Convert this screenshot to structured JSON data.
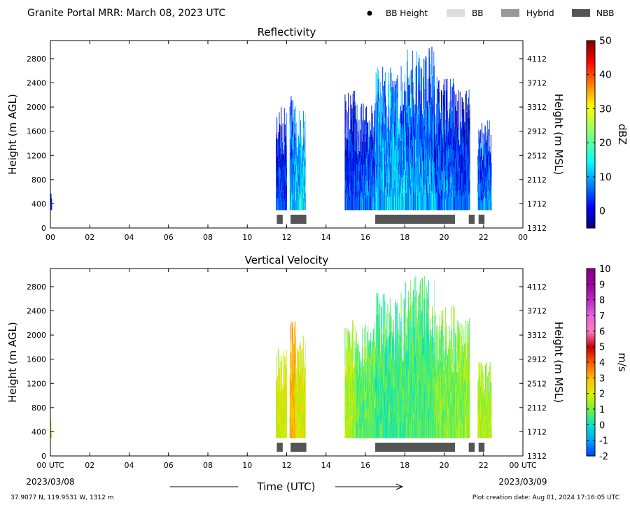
{
  "header": {
    "title": "Granite Portal MRR:  March 08, 2023 UTC",
    "legend": [
      {
        "label": "BB Height",
        "kind": "dot",
        "color": "#000000"
      },
      {
        "label": "BB",
        "kind": "swatch",
        "color": "#dddddd"
      },
      {
        "label": "Hybrid",
        "kind": "swatch",
        "color": "#999999"
      },
      {
        "label": "NBB",
        "kind": "swatch",
        "color": "#555555"
      }
    ]
  },
  "footer": {
    "location": "37.9077 N, 119.9531 W, 1312 m",
    "created": "Plot creation date: Aug 01, 2024 17:16:05 UTC",
    "date_start": "2023/03/08",
    "date_end": "2023/03/09",
    "xlabel": "Time (UTC)"
  },
  "chart_data": [
    {
      "type": "heatmap",
      "title": "Reflectivity",
      "ylabel": "Height (m AGL)",
      "y2label": "Height (m MSL)",
      "xlim": [
        0,
        24
      ],
      "ylim": [
        0,
        3100
      ],
      "x_ticks": [
        "00",
        "02",
        "04",
        "06",
        "08",
        "10",
        "12",
        "14",
        "16",
        "18",
        "20",
        "22",
        "00"
      ],
      "y_ticks": [
        0,
        400,
        800,
        1200,
        1600,
        2000,
        2400,
        2800
      ],
      "y2_ticks": [
        "1312",
        "1712",
        "2112",
        "2512",
        "2912",
        "3312",
        "3712",
        "4112"
      ],
      "colorbar": {
        "label": "dBZ",
        "min": -5,
        "max": 50,
        "ticks": [
          0,
          10,
          20,
          30,
          40,
          50
        ],
        "colormap": "jet"
      },
      "bright_band_type": [
        {
          "start": 11.5,
          "end": 11.8,
          "type": "NBB"
        },
        {
          "start": 12.2,
          "end": 13.0,
          "type": "NBB"
        },
        {
          "start": 16.5,
          "end": 20.55,
          "type": "NBB"
        },
        {
          "start": 21.25,
          "end": 21.55,
          "type": "NBB"
        },
        {
          "start": 21.75,
          "end": 22.05,
          "type": "NBB"
        }
      ],
      "echo_periods": [
        {
          "start": 0.0,
          "end": 0.07,
          "top": 600,
          "level": 2
        },
        {
          "start": 11.45,
          "end": 12.0,
          "top": 2000,
          "level": 5
        },
        {
          "start": 12.15,
          "end": 12.45,
          "top": 2300,
          "level": 10
        },
        {
          "start": 12.45,
          "end": 12.95,
          "top": 2000,
          "level": 14
        },
        {
          "start": 14.95,
          "end": 15.5,
          "top": 2300,
          "level": 4
        },
        {
          "start": 15.5,
          "end": 16.5,
          "top": 2100,
          "level": 7
        },
        {
          "start": 16.5,
          "end": 18.0,
          "top": 2700,
          "level": 12
        },
        {
          "start": 18.0,
          "end": 19.5,
          "top": 3000,
          "level": 10
        },
        {
          "start": 19.5,
          "end": 20.55,
          "top": 2500,
          "level": 7
        },
        {
          "start": 20.55,
          "end": 21.3,
          "top": 2300,
          "level": 5
        },
        {
          "start": 21.7,
          "end": 22.4,
          "top": 1800,
          "level": 8
        }
      ]
    },
    {
      "type": "heatmap",
      "title": "Vertical Velocity",
      "ylabel": "Height (m AGL)",
      "y2label": "Height (m MSL)",
      "xlim": [
        0,
        24
      ],
      "ylim": [
        0,
        3100
      ],
      "x_ticks": [
        "00 UTC",
        "02",
        "04",
        "06",
        "08",
        "10",
        "12",
        "14",
        "16",
        "18",
        "20",
        "22",
        "00 UTC"
      ],
      "y_ticks": [
        0,
        400,
        800,
        1200,
        1600,
        2000,
        2400,
        2800
      ],
      "y2_ticks": [
        "1312",
        "1712",
        "2112",
        "2512",
        "2912",
        "3312",
        "3712",
        "4112"
      ],
      "colorbar": {
        "label": "m/s",
        "min": -2,
        "max": 10,
        "ticks": [
          -2,
          -1,
          0,
          1,
          2,
          3,
          4,
          5,
          6,
          7,
          8,
          9,
          10
        ],
        "colormap": "velocity"
      },
      "bright_band_type": [
        {
          "start": 11.5,
          "end": 11.8,
          "type": "NBB"
        },
        {
          "start": 12.2,
          "end": 13.0,
          "type": "NBB"
        },
        {
          "start": 16.5,
          "end": 20.55,
          "type": "NBB"
        },
        {
          "start": 21.25,
          "end": 21.55,
          "type": "NBB"
        },
        {
          "start": 21.75,
          "end": 22.05,
          "type": "NBB"
        }
      ],
      "echo_periods": [
        {
          "start": 0.0,
          "end": 0.07,
          "top": 600,
          "level": 1.5
        },
        {
          "start": 11.45,
          "end": 12.0,
          "top": 1800,
          "level": 2
        },
        {
          "start": 12.15,
          "end": 12.45,
          "top": 2300,
          "level": 3
        },
        {
          "start": 12.45,
          "end": 12.95,
          "top": 2000,
          "level": 2
        },
        {
          "start": 14.95,
          "end": 15.5,
          "top": 2300,
          "level": 1.5
        },
        {
          "start": 15.5,
          "end": 16.5,
          "top": 2200,
          "level": 0.8
        },
        {
          "start": 16.5,
          "end": 18.0,
          "top": 2700,
          "level": 0.5
        },
        {
          "start": 18.0,
          "end": 19.5,
          "top": 3000,
          "level": 0.6
        },
        {
          "start": 19.5,
          "end": 20.55,
          "top": 2500,
          "level": 1
        },
        {
          "start": 20.55,
          "end": 21.3,
          "top": 2300,
          "level": 1.2
        },
        {
          "start": 21.7,
          "end": 22.4,
          "top": 1600,
          "level": 1.5
        }
      ]
    }
  ]
}
